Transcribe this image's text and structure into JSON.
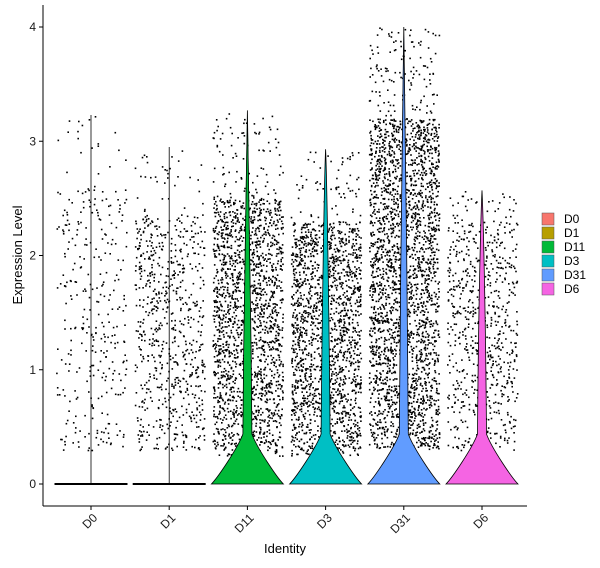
{
  "chart_data": {
    "type": "violin",
    "xlabel": "Identity",
    "ylabel": "Expression Level",
    "ylim": [
      -0.25,
      4.2
    ],
    "yticks": [
      0,
      1,
      2,
      3,
      4
    ],
    "categories": [
      "D0",
      "D1",
      "D11",
      "D3",
      "D31",
      "D6"
    ],
    "series": [
      {
        "name": "D0",
        "color": "#F8766D",
        "max": 3.23,
        "dot_count": 320,
        "dot_range": [
          0.3,
          2.6
        ]
      },
      {
        "name": "D1",
        "color": "#B79F00",
        "max": 2.95,
        "dot_count": 700,
        "dot_range": [
          0.3,
          2.35
        ]
      },
      {
        "name": "D11",
        "color": "#00BA38",
        "max": 3.27,
        "dot_count": 1900,
        "dot_range": [
          0.25,
          2.5
        ]
      },
      {
        "name": "D3",
        "color": "#00BFC4",
        "max": 2.93,
        "dot_count": 1800,
        "dot_range": [
          0.25,
          2.3
        ]
      },
      {
        "name": "D31",
        "color": "#619CFF",
        "max": 4.0,
        "dot_count": 2700,
        "dot_range": [
          0.3,
          3.2
        ]
      },
      {
        "name": "D6",
        "color": "#F564E3",
        "max": 2.57,
        "dot_count": 700,
        "dot_range": [
          0.3,
          2.3
        ]
      }
    ],
    "legend": {
      "position": "right",
      "entries": [
        "D0",
        "D1",
        "D11",
        "D3",
        "D31",
        "D6"
      ]
    },
    "grid": false
  }
}
